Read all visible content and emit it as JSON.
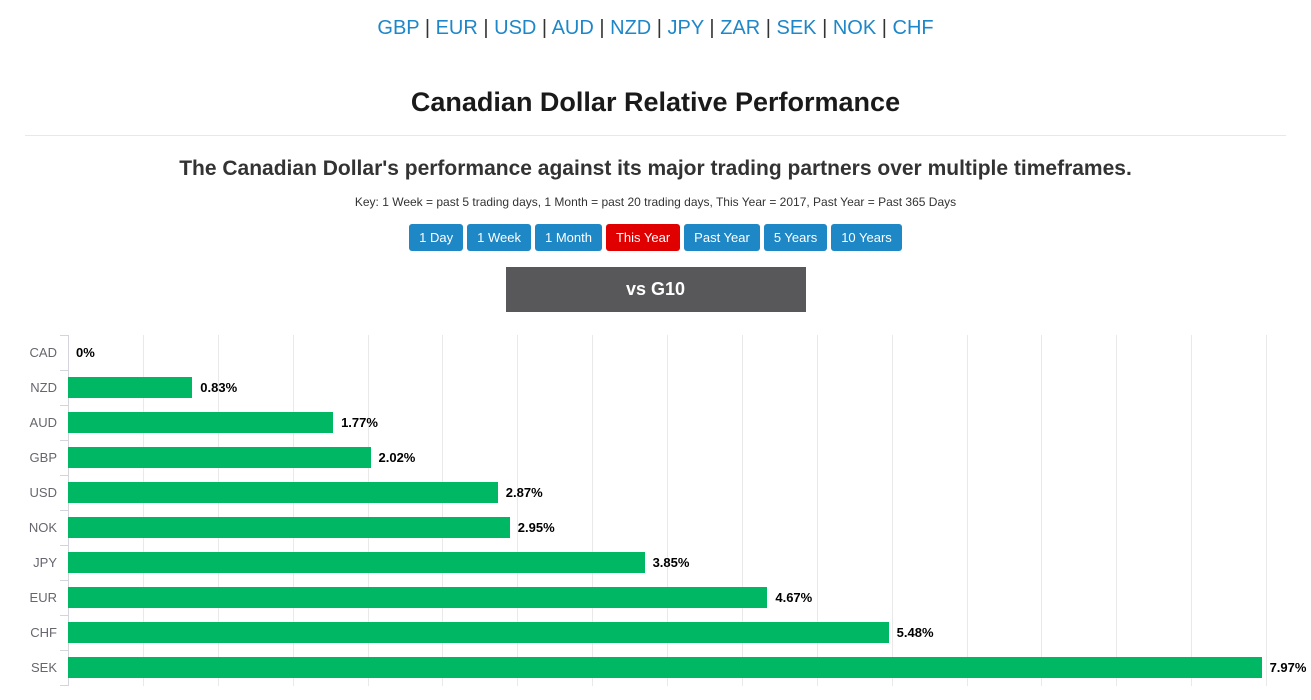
{
  "nav": {
    "separator": "|",
    "items": [
      "GBP",
      "EUR",
      "USD",
      "AUD",
      "NZD",
      "JPY",
      "ZAR",
      "SEK",
      "NOK",
      "CHF"
    ]
  },
  "header": {
    "title": "Canadian Dollar Relative Performance"
  },
  "intro": {
    "subtitle": "The Canadian Dollar's performance against its major trading partners over multiple timeframes.",
    "key_note": "Key: 1 Week = past 5 trading days, 1 Month = past 20 trading days, This Year = 2017, Past Year = Past 365 Days"
  },
  "timeframe_buttons": [
    {
      "label": "1 Day",
      "active": false
    },
    {
      "label": "1 Week",
      "active": false
    },
    {
      "label": "1 Month",
      "active": false
    },
    {
      "label": "This Year",
      "active": true
    },
    {
      "label": "Past Year",
      "active": false
    },
    {
      "label": "5 Years",
      "active": false
    },
    {
      "label": "10 Years",
      "active": false
    }
  ],
  "section": {
    "banner": "vs G10"
  },
  "chart_data": {
    "type": "bar",
    "orientation": "horizontal",
    "title": "vs G10",
    "categories": [
      "CAD",
      "NZD",
      "AUD",
      "GBP",
      "USD",
      "NOK",
      "JPY",
      "EUR",
      "CHF",
      "SEK"
    ],
    "values": [
      0,
      0.83,
      1.77,
      2.02,
      2.87,
      2.95,
      3.85,
      4.67,
      5.48,
      7.97
    ],
    "value_labels": [
      "0%",
      "0.83%",
      "1.77%",
      "2.02%",
      "2.87%",
      "2.95%",
      "3.85%",
      "4.67%",
      "5.48%",
      "7.97%"
    ],
    "xlabel": "",
    "ylabel": "",
    "xlim": [
      0,
      8.3
    ],
    "gridline_step": 0.5,
    "grid": true,
    "legend": false,
    "bar_color": "#00b863"
  },
  "colors": {
    "link_blue": "#1e87c9",
    "button_blue": "#1e87c5",
    "active_red": "#e10000",
    "banner_gray": "#58585b",
    "bar_green": "#00b863",
    "gridline": "#e9e9e9",
    "axis": "#d4d4dc"
  }
}
